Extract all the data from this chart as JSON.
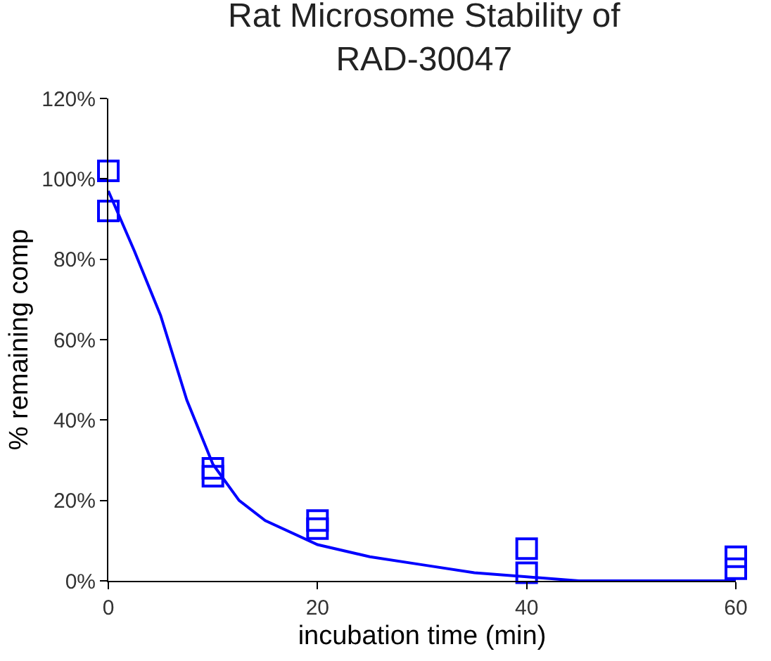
{
  "chart_data": {
    "type": "scatter",
    "title": "Rat Microsome Stability of\nRAD-30047",
    "xlabel": "incubation time (min)",
    "ylabel": "% remaining comp",
    "xlim": [
      0,
      60
    ],
    "xticks": [
      0,
      20,
      40,
      60
    ],
    "ylim": [
      0,
      120
    ],
    "yticks": [
      {
        "value": 0,
        "label": "0%"
      },
      {
        "value": 20,
        "label": "20%"
      },
      {
        "value": 40,
        "label": "40%"
      },
      {
        "value": 60,
        "label": "60%"
      },
      {
        "value": 80,
        "label": "80%"
      },
      {
        "value": 100,
        "label": "100%"
      },
      {
        "value": 120,
        "label": "120%"
      }
    ],
    "series": [
      {
        "marker": "square",
        "color": "#0000ff",
        "x": [
          0,
          0,
          10,
          10,
          20,
          20,
          40,
          40,
          60,
          60
        ],
        "values": [
          102,
          92,
          28,
          26,
          15,
          13,
          8,
          2,
          6,
          3
        ]
      },
      {
        "type": "line",
        "marker": "none",
        "line_style": "solid",
        "color": "#0000ff",
        "x": [
          0,
          2.5,
          5,
          7.5,
          10,
          12.5,
          15,
          20,
          25,
          30,
          35,
          40,
          45,
          60
        ],
        "values": [
          97,
          82,
          66,
          45,
          29,
          20,
          15,
          9,
          6,
          4,
          2,
          1,
          0,
          0
        ]
      }
    ]
  }
}
